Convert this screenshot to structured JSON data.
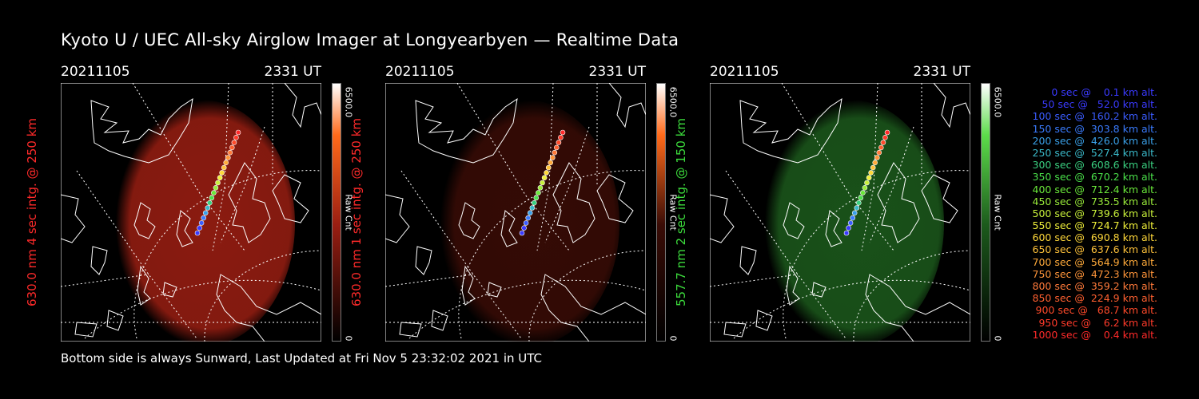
{
  "title": "Kyoto U / UEC All-sky Airglow Imager at Longyearbyen — Realtime Data",
  "footer": "Bottom side is always Sunward, Last Updated at Fri Nov  5 23:32:02 2021 in UTC",
  "panels": [
    {
      "date": "20211105",
      "time": "2331 UT",
      "ylabel": "630.0 nm 4 sec intg. @ 250 km",
      "color": "#ff2a2a",
      "glow": "#9a1e12",
      "cbar_top": "#ff6a1a",
      "cbar_max": "6500.0",
      "cbar_min": "0",
      "cbar_unit": "Raw Cnt"
    },
    {
      "date": "20211105",
      "time": "2331 UT",
      "ylabel": "630.0 nm 1 sec intg. @ 250 km",
      "color": "#ff2a2a",
      "glow": "#3a0c06",
      "cbar_top": "#ff6a1a",
      "cbar_max": "6500.0",
      "cbar_min": "0",
      "cbar_unit": "Raw Cnt"
    },
    {
      "date": "20211105",
      "time": "2331 UT",
      "ylabel": "557.7 nm 2 sec intg. @ 150 km",
      "color": "#3cdc3c",
      "glow": "#1c5a1c",
      "cbar_top": "#5cdc4a",
      "cbar_max": "6500.0",
      "cbar_min": "0",
      "cbar_unit": "Raw Cnt"
    }
  ],
  "legend": [
    {
      "text": "   0 sec @    0.1 km alt.",
      "color": "#3a3aff"
    },
    {
      "text": "  50 sec @   52.0 km alt.",
      "color": "#3a3aff"
    },
    {
      "text": " 100 sec @  160.2 km alt.",
      "color": "#3a5cff"
    },
    {
      "text": " 150 sec @  303.8 km alt.",
      "color": "#3a7cff"
    },
    {
      "text": " 200 sec @  426.0 km alt.",
      "color": "#3aa0e8"
    },
    {
      "text": " 250 sec @  527.4 km alt.",
      "color": "#3ab8c8"
    },
    {
      "text": " 300 sec @  608.6 km alt.",
      "color": "#3ad080"
    },
    {
      "text": " 350 sec @  670.2 km alt.",
      "color": "#4ae04a"
    },
    {
      "text": " 400 sec @  712.4 km alt.",
      "color": "#6ae83a"
    },
    {
      "text": " 450 sec @  735.5 km alt.",
      "color": "#9aec3a"
    },
    {
      "text": " 500 sec @  739.6 km alt.",
      "color": "#c8f03a"
    },
    {
      "text": " 550 sec @  724.7 km alt.",
      "color": "#f0f03a"
    },
    {
      "text": " 600 sec @  690.8 km alt.",
      "color": "#ffd83a"
    },
    {
      "text": " 650 sec @  637.6 km alt.",
      "color": "#ffc23a"
    },
    {
      "text": " 700 sec @  564.9 km alt.",
      "color": "#ffaa3a"
    },
    {
      "text": " 750 sec @  472.3 km alt.",
      "color": "#ff953a"
    },
    {
      "text": " 800 sec @  359.2 km alt.",
      "color": "#ff7a3a"
    },
    {
      "text": " 850 sec @  224.9 km alt.",
      "color": "#ff6030"
    },
    {
      "text": " 900 sec @   68.7 km alt.",
      "color": "#ff4a2a"
    },
    {
      "text": " 950 sec @    6.2 km alt.",
      "color": "#ff3a2a"
    },
    {
      "text": "1000 sec @    0.4 km alt.",
      "color": "#ff2a2a"
    }
  ]
}
